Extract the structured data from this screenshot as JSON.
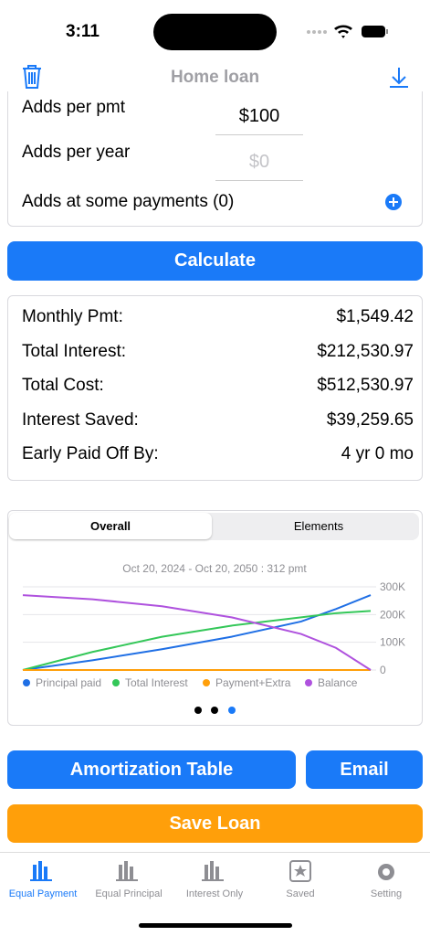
{
  "status": {
    "time": "3:11"
  },
  "header": {
    "title": "Home loan"
  },
  "inputs": [
    {
      "label": "Adds per pmt",
      "value": "$100"
    },
    {
      "label": "Adds per year",
      "placeholder": "$0"
    }
  ],
  "adds_at_payments": "Adds at some payments (0)",
  "calculate": "Calculate",
  "results": [
    [
      "Monthly Pmt:",
      "$1,549.42"
    ],
    [
      "Total Interest:",
      "$212,530.97"
    ],
    [
      "Total Cost:",
      "$512,530.97"
    ],
    [
      "Interest Saved:",
      "$39,259.65"
    ],
    [
      "Early Paid Off By:",
      "4 yr 0 mo"
    ]
  ],
  "tabs": [
    "Overall",
    "Elements"
  ],
  "chart_data": {
    "type": "line",
    "subtitle": "Oct 20, 2024 - Oct 20, 2050 : 312 pmt",
    "x": [
      0,
      1,
      2,
      3,
      4,
      4.5,
      5
    ],
    "xlim": [
      0,
      5
    ],
    "ylim": [
      0,
      300000
    ],
    "yticks": [
      0,
      {
        "value": 100000,
        "label": "100K"
      },
      {
        "value": 200000,
        "label": "200K"
      },
      {
        "value": 300000,
        "label": "300K"
      }
    ],
    "grid": true,
    "series": [
      {
        "name": "Principal paid",
        "color": "#1f6fe5",
        "values": [
          0,
          35000,
          75000,
          120000,
          175000,
          220000,
          270000
        ]
      },
      {
        "name": "Total Interest",
        "color": "#34c759",
        "values": [
          0,
          65000,
          120000,
          160000,
          190000,
          205000,
          213000
        ]
      },
      {
        "name": "Payment+Extra",
        "color": "#ff9f0a",
        "values": [
          0,
          0,
          0,
          0,
          0,
          0,
          0
        ]
      },
      {
        "name": "Balance",
        "color": "#af52de",
        "values": [
          270000,
          255000,
          230000,
          190000,
          130000,
          80000,
          0
        ]
      }
    ]
  },
  "buttons": {
    "amortization": "Amortization Table",
    "email": "Email",
    "save": "Save Loan"
  },
  "tabbar": [
    "Equal Payment",
    "Equal Principal",
    "Interest Only",
    "Saved",
    "Setting"
  ]
}
